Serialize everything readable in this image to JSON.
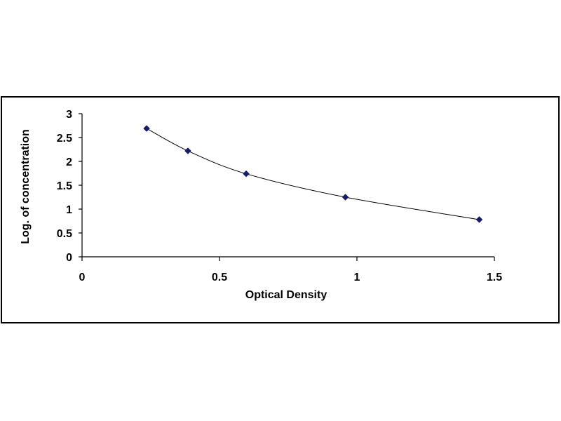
{
  "chart_data": {
    "type": "scatter",
    "title": "",
    "xlabel": "Optical Density",
    "ylabel": "Log. of concentration",
    "xlim": [
      0,
      1.5
    ],
    "ylim": [
      0,
      3
    ],
    "x_ticks": [
      "0",
      "0.5",
      "1",
      "1.5"
    ],
    "y_ticks": [
      "0",
      "0.5",
      "1",
      "1.5",
      "2",
      "2.5",
      "3"
    ],
    "grid": false,
    "legend": "none",
    "series": [
      {
        "x": [
          0.235,
          0.385,
          0.597,
          0.958,
          1.445
        ],
        "y": [
          2.69,
          2.22,
          1.74,
          1.25,
          0.78
        ],
        "marker": "diamond",
        "marker_color": "#1a1a6e",
        "trendline": "smooth",
        "line_color": "#000000"
      }
    ]
  }
}
